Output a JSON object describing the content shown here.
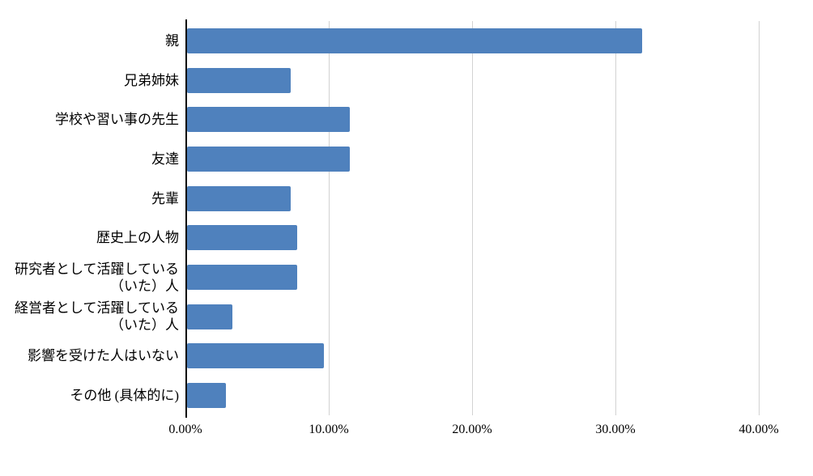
{
  "chart_data": {
    "type": "bar",
    "orientation": "horizontal",
    "title": "",
    "xlabel": "",
    "ylabel": "",
    "categories": [
      "親",
      "兄弟姉妹",
      "学校や習い事の先生",
      "友達",
      "先輩",
      "歴史上の人物",
      "研究者として活躍している\n（いた）人",
      "経営者として活躍している\n（いた）人",
      "影響を受けた人はいない",
      "その他 (具体的に)"
    ],
    "values": [
      31.82,
      7.27,
      11.36,
      11.36,
      7.27,
      7.73,
      7.73,
      3.18,
      9.55,
      2.73
    ],
    "unit": "%",
    "xlim": [
      0,
      40
    ],
    "x_ticks": [
      0,
      10,
      20,
      30,
      40
    ],
    "x_tick_labels": [
      "0.00%",
      "10.00%",
      "20.00%",
      "30.00%",
      "40.00%"
    ],
    "grid": "vertical-gridlines-on",
    "legend": "none",
    "bar_color": "#4F81BD",
    "gridline_color": "#D2D2D2",
    "axis_color": "#000000"
  }
}
